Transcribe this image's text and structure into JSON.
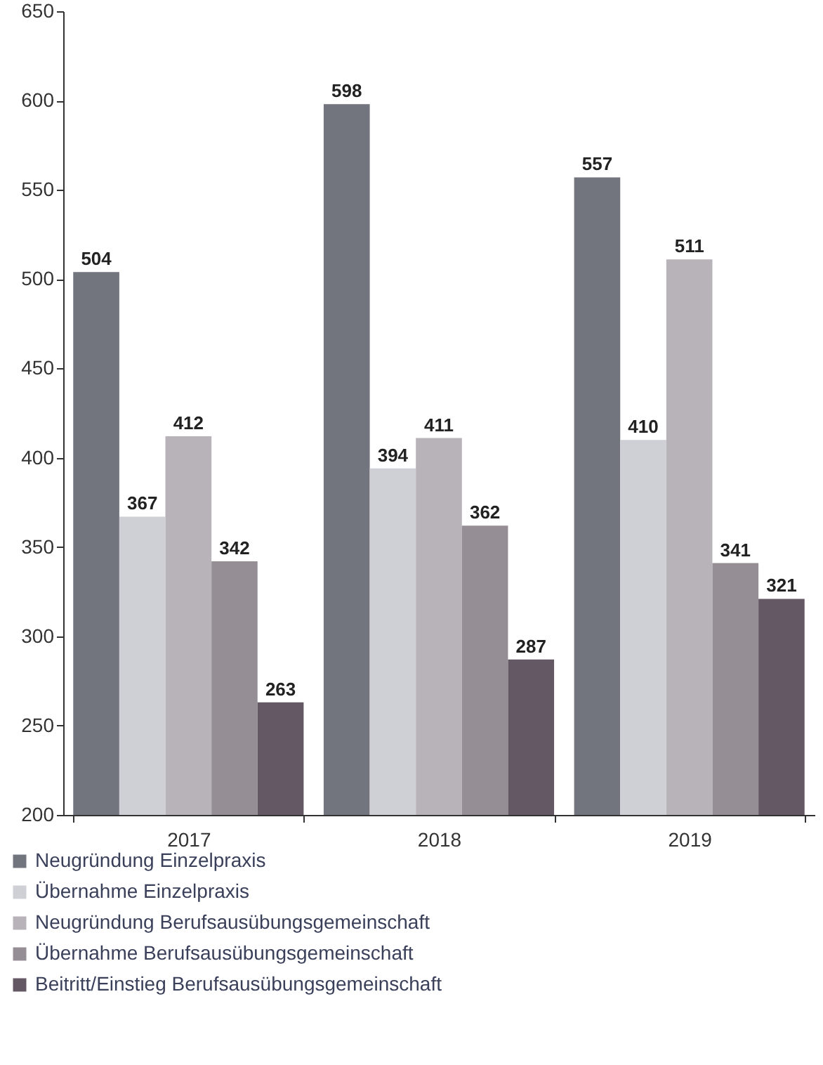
{
  "chart_data": {
    "type": "bar",
    "categories": [
      "2017",
      "2018",
      "2019"
    ],
    "series": [
      {
        "name": "Neugründung Einzelpraxis",
        "color": "#72747e",
        "values": [
          504,
          598,
          557
        ]
      },
      {
        "name": "Übernahme Einzelpraxis",
        "color": "#cfd0d5",
        "values": [
          367,
          394,
          410
        ]
      },
      {
        "name": "Neugründung Berufsausübungsgemeinschaft",
        "color": "#b8b3b8",
        "values": [
          412,
          411,
          511
        ]
      },
      {
        "name": "Übernahme Berufsausübungsgemeinschaft",
        "color": "#958e95",
        "values": [
          342,
          362,
          341
        ]
      },
      {
        "name": "Beitritt/Einstieg Berufsausübungsgemeinschaft",
        "color": "#645865",
        "values": [
          263,
          287,
          321
        ]
      }
    ],
    "ylim": [
      200,
      650
    ],
    "yticks": [
      200,
      250,
      300,
      350,
      400,
      450,
      500,
      550,
      600,
      650
    ],
    "data_labels": true,
    "legend": "bottom left",
    "grid": false
  }
}
